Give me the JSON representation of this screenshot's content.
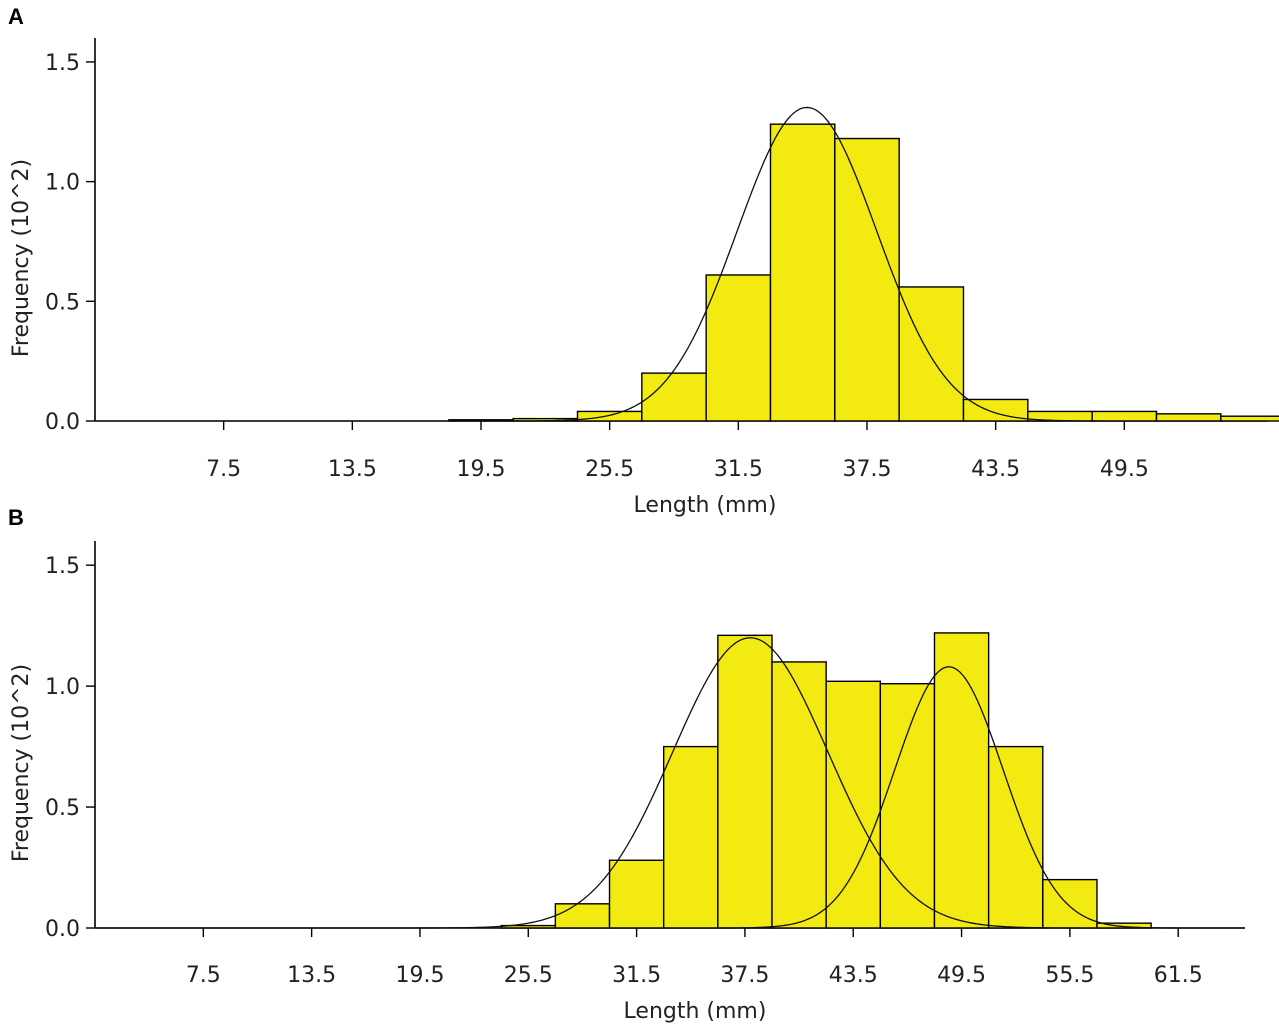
{
  "chart_data": [
    {
      "panel": "A",
      "type": "bar",
      "xlabel": "Length (mm)",
      "ylabel": "Frequency (10^2)",
      "ylim": [
        0,
        1.6
      ],
      "yticks": [
        "0.0",
        "0.5",
        "1.0",
        "1.5"
      ],
      "ytick_values": [
        0,
        0.5,
        1.0,
        1.5
      ],
      "xticks": [
        "7.5",
        "13.5",
        "19.5",
        "25.5",
        "31.5",
        "37.5",
        "43.5",
        "49.5"
      ],
      "xtick_values": [
        7.5,
        13.5,
        19.5,
        25.5,
        31.5,
        37.5,
        43.5,
        49.5
      ],
      "xlim": [
        1.5,
        56.2
      ],
      "bin_width": 3,
      "bar_color": "#f2ea10",
      "bars": [
        {
          "start": 18.0,
          "value": 0.005
        },
        {
          "start": 21.0,
          "value": 0.01
        },
        {
          "start": 24.0,
          "value": 0.04
        },
        {
          "start": 27.0,
          "value": 0.2
        },
        {
          "start": 30.0,
          "value": 0.61
        },
        {
          "start": 33.0,
          "value": 1.24
        },
        {
          "start": 36.0,
          "value": 1.18
        },
        {
          "start": 39.0,
          "value": 0.56
        },
        {
          "start": 42.0,
          "value": 0.09
        },
        {
          "start": 45.0,
          "value": 0.04
        },
        {
          "start": 48.0,
          "value": 0.04
        },
        {
          "start": 51.0,
          "value": 0.03
        },
        {
          "start": 54.0,
          "value": 0.02
        }
      ],
      "curves": [
        {
          "mean": 34.7,
          "sd": 3.25,
          "peak": 1.31
        }
      ]
    },
    {
      "panel": "B",
      "type": "bar",
      "xlabel": "Length (mm)",
      "ylabel": "Frequency (10^2)",
      "ylim": [
        0,
        1.6
      ],
      "yticks": [
        "0.0",
        "0.5",
        "1.0",
        "1.5"
      ],
      "ytick_values": [
        0,
        0.5,
        1.0,
        1.5
      ],
      "xticks": [
        "7.5",
        "13.5",
        "19.5",
        "25.5",
        "31.5",
        "37.5",
        "43.5",
        "49.5",
        "55.5",
        "61.5"
      ],
      "xtick_values": [
        7.5,
        13.5,
        19.5,
        25.5,
        31.5,
        37.5,
        43.5,
        49.5,
        55.5,
        61.5
      ],
      "xlim": [
        1.5,
        65.2
      ],
      "bin_width": 3,
      "bar_color": "#f2ea10",
      "bars": [
        {
          "start": 24.0,
          "value": 0.01
        },
        {
          "start": 27.0,
          "value": 0.1
        },
        {
          "start": 30.0,
          "value": 0.28
        },
        {
          "start": 33.0,
          "value": 0.75
        },
        {
          "start": 36.0,
          "value": 1.21
        },
        {
          "start": 39.0,
          "value": 1.1
        },
        {
          "start": 42.0,
          "value": 1.02
        },
        {
          "start": 45.0,
          "value": 1.01
        },
        {
          "start": 48.0,
          "value": 1.22
        },
        {
          "start": 51.0,
          "value": 0.75
        },
        {
          "start": 54.0,
          "value": 0.2
        },
        {
          "start": 57.0,
          "value": 0.02
        }
      ],
      "curves": [
        {
          "mean": 37.8,
          "sd": 4.3,
          "peak": 1.2
        },
        {
          "mean": 48.8,
          "sd": 3.0,
          "peak": 1.08
        }
      ]
    }
  ]
}
